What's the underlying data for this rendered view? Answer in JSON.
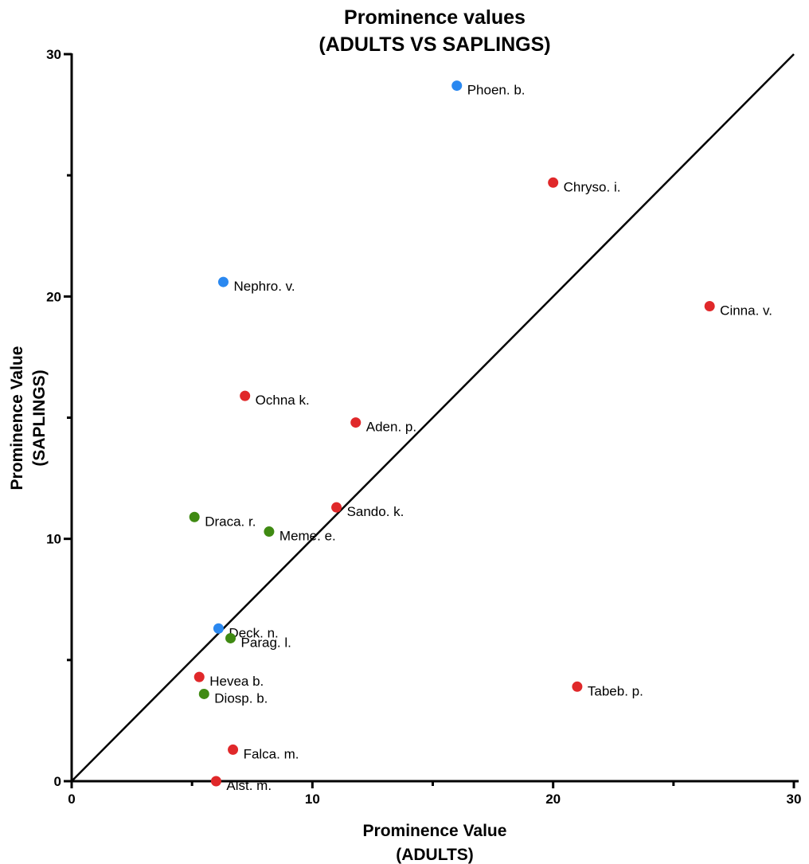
{
  "chart_data": {
    "type": "scatter",
    "title": "Prominence values",
    "subtitle": "(ADULTS VS SAPLINGS)",
    "xlabel": "Prominence Value",
    "xlabel_sub": "(ADULTS)",
    "ylabel": "Prominence Value",
    "ylabel_sub": "(SAPLINGS)",
    "xlim": [
      0,
      30
    ],
    "ylim": [
      0,
      30
    ],
    "x_ticks": [
      0,
      10,
      20,
      30
    ],
    "y_ticks": [
      0,
      10,
      20,
      30
    ],
    "x_minor_ticks": [
      5,
      15,
      25
    ],
    "y_minor_ticks": [
      5,
      15,
      25
    ],
    "grid": false,
    "reference_line": {
      "from": [
        0,
        0
      ],
      "to": [
        30,
        30
      ]
    },
    "colors": {
      "red": "#e0282a",
      "blue": "#2a88f0",
      "green": "#3f8a12"
    },
    "points": [
      {
        "label": "Phoen. b.",
        "x": 16.0,
        "y": 28.7,
        "color": "blue"
      },
      {
        "label": "Chryso. i.",
        "x": 20.0,
        "y": 24.7,
        "color": "red"
      },
      {
        "label": "Nephro. v.",
        "x": 6.3,
        "y": 20.6,
        "color": "blue"
      },
      {
        "label": "Cinna. v.",
        "x": 26.5,
        "y": 19.6,
        "color": "red"
      },
      {
        "label": "Ochna k.",
        "x": 7.2,
        "y": 15.9,
        "color": "red"
      },
      {
        "label": "Aden. p.",
        "x": 11.8,
        "y": 14.8,
        "color": "red"
      },
      {
        "label": "Sando. k.",
        "x": 11.0,
        "y": 11.3,
        "color": "red"
      },
      {
        "label": "Draca. r.",
        "x": 5.1,
        "y": 10.9,
        "color": "green"
      },
      {
        "label": "Meme. e.",
        "x": 8.2,
        "y": 10.3,
        "color": "green"
      },
      {
        "label": "Deck. n.",
        "x": 6.1,
        "y": 6.3,
        "color": "blue"
      },
      {
        "label": "Parag. l.",
        "x": 6.6,
        "y": 5.9,
        "color": "green"
      },
      {
        "label": "Hevea b.",
        "x": 5.3,
        "y": 4.3,
        "color": "red"
      },
      {
        "label": "Tabeb. p.",
        "x": 21.0,
        "y": 3.9,
        "color": "red"
      },
      {
        "label": "Diosp. b.",
        "x": 5.5,
        "y": 3.6,
        "color": "green"
      },
      {
        "label": "Falca. m.",
        "x": 6.7,
        "y": 1.3,
        "color": "red"
      },
      {
        "label": "Alst. m.",
        "x": 6.0,
        "y": 0.0,
        "color": "red"
      }
    ]
  }
}
